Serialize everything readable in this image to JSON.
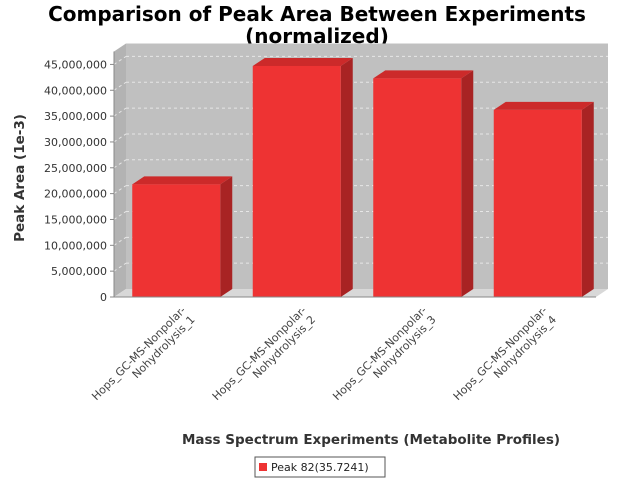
{
  "chart_data": {
    "type": "bar",
    "title_line1": "Comparison of Peak Area Between Experiments",
    "title_line2": "(normalized)",
    "xlabel": "Mass Spectrum Experiments (Metabolite Profiles)",
    "ylabel": "Peak Area (1e-3)",
    "categories": [
      [
        "Hops_GC-MS-Nonpolar-",
        "Nohydrolysis_1"
      ],
      [
        "Hops_GC-MS-Nonpolar-",
        "Nohydrolysis_2"
      ],
      [
        "Hops_GC-MS-Nonpolar-",
        "Nohydrolysis_3"
      ],
      [
        "Hops_GC-MS-Nonpolar-",
        "Nohydrolysis_4"
      ]
    ],
    "series": [
      {
        "name": "Peak 82(35.7241)",
        "values": [
          21800000,
          44700000,
          42300000,
          36200000
        ]
      }
    ],
    "ylim": [
      0,
      47500000
    ],
    "yticks": [
      0,
      5000000,
      10000000,
      15000000,
      20000000,
      25000000,
      30000000,
      35000000,
      40000000,
      45000000
    ],
    "ytick_labels": [
      "0",
      "5,000,000",
      "10,000,000",
      "15,000,000",
      "20,000,000",
      "25,000,000",
      "30,000,000",
      "35,000,000",
      "40,000,000",
      "45,000,000"
    ],
    "grid": true,
    "legend_position": "bottom-center",
    "colors": {
      "bar_front": "#ee3333",
      "bar_top": "#cc2a2a",
      "bar_side": "#a82323",
      "plot_back": "#c0c0c0",
      "plot_floor": "#d8d8d8",
      "plot_wall": "#b3b3b3",
      "gridline": "#e6e6e6"
    }
  }
}
